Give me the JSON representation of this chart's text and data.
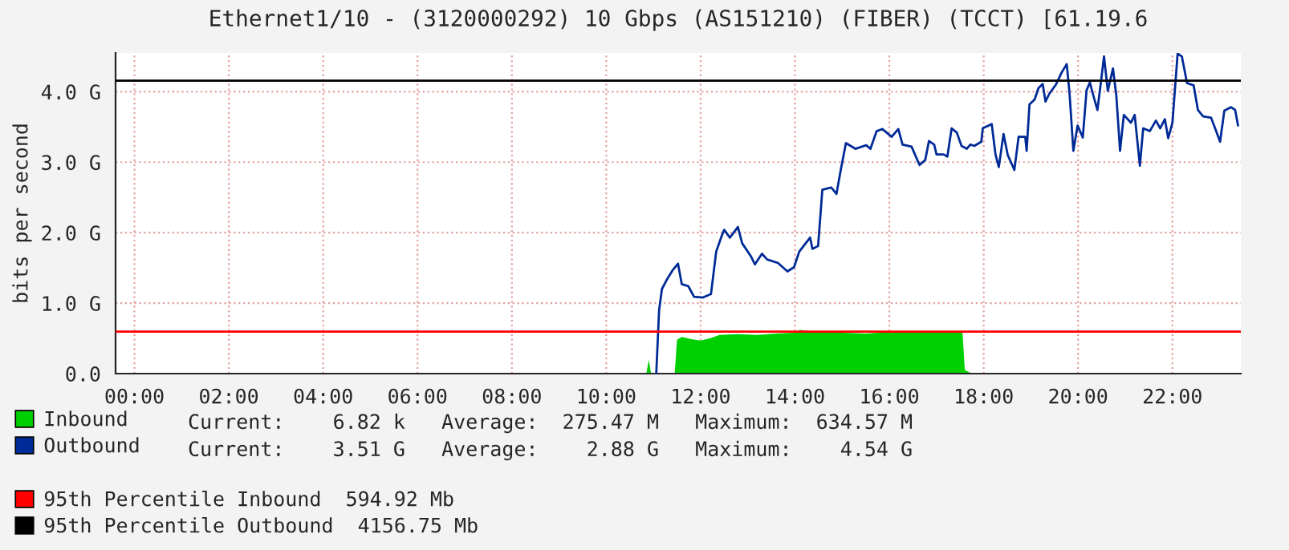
{
  "chart_data": {
    "type": "line",
    "title": "Ethernet1/10 - (3120000292) 10 Gbps (AS151210) (FIBER) (TCCT) [61.19.6",
    "ylabel": "bits per second",
    "xlim": [
      -0.4,
      23.45
    ],
    "xticks": [
      {
        "value": 0,
        "label": "00:00"
      },
      {
        "value": 2,
        "label": "02:00"
      },
      {
        "value": 4,
        "label": "04:00"
      },
      {
        "value": 6,
        "label": "06:00"
      },
      {
        "value": 8,
        "label": "08:00"
      },
      {
        "value": 10,
        "label": "10:00"
      },
      {
        "value": 12,
        "label": "12:00"
      },
      {
        "value": 14,
        "label": "14:00"
      },
      {
        "value": 16,
        "label": "16:00"
      },
      {
        "value": 18,
        "label": "18:00"
      },
      {
        "value": 20,
        "label": "20:00"
      },
      {
        "value": 22,
        "label": "22:00"
      }
    ],
    "ylim": [
      0,
      4.55
    ],
    "yticks": [
      {
        "value": 0,
        "label": "0.0"
      },
      {
        "value": 1,
        "label": "1.0 G"
      },
      {
        "value": 2,
        "label": "2.0 G"
      },
      {
        "value": 3,
        "label": "3.0 G"
      },
      {
        "value": 4,
        "label": "4.0 G"
      }
    ],
    "grid": true,
    "legend": "bottom",
    "series": [
      {
        "name": "Inbound",
        "type": "area",
        "color": "#00cf00",
        "x": [
          10.85,
          10.9,
          10.95,
          11.45,
          11.5,
          11.6,
          11.8,
          12.0,
          12.2,
          12.4,
          12.8,
          13.2,
          13.6,
          14.0,
          14.1,
          14.5,
          15.0,
          15.5,
          16.0,
          16.5,
          17.0,
          17.55,
          17.6,
          17.75
        ],
        "values": [
          0,
          0.2,
          0,
          0,
          0.48,
          0.52,
          0.49,
          0.47,
          0.5,
          0.55,
          0.56,
          0.55,
          0.57,
          0.58,
          0.62,
          0.59,
          0.58,
          0.57,
          0.59,
          0.59,
          0.58,
          0.59,
          0.05,
          0
        ]
      },
      {
        "name": "Outbound",
        "color": "#002a97",
        "x": [
          11.06,
          11.12,
          11.18,
          11.29,
          11.41,
          11.52,
          11.6,
          11.74,
          11.86,
          12.05,
          12.22,
          12.33,
          12.45,
          12.5,
          12.62,
          12.79,
          12.88,
          13.07,
          13.15,
          13.3,
          13.41,
          13.64,
          13.84,
          13.98,
          14.09,
          14.32,
          14.37,
          14.49,
          14.58,
          14.77,
          14.88,
          14.97,
          15.08,
          15.28,
          15.51,
          15.6,
          15.73,
          15.85,
          16.05,
          16.19,
          16.28,
          16.47,
          16.64,
          16.76,
          16.84,
          16.95,
          17.0,
          17.15,
          17.23,
          17.32,
          17.43,
          17.53,
          17.64,
          17.72,
          17.8,
          17.95,
          17.98,
          18.17,
          18.25,
          18.32,
          18.42,
          18.51,
          18.65,
          18.74,
          18.88,
          18.91,
          18.97,
          19.08,
          19.16,
          19.25,
          19.31,
          19.39,
          19.53,
          19.65,
          19.76,
          19.82,
          19.9,
          19.99,
          20.1,
          20.18,
          20.25,
          20.33,
          20.41,
          20.48,
          20.55,
          20.63,
          20.74,
          20.81,
          20.89,
          20.97,
          21.12,
          21.2,
          21.31,
          21.38,
          21.52,
          21.65,
          21.74,
          21.84,
          21.91,
          22.0,
          22.11,
          22.2,
          22.31,
          22.45,
          22.54,
          22.65,
          22.82,
          22.9,
          23.01,
          23.1,
          23.24,
          23.33,
          23.39
        ],
        "values": [
          0,
          0.9,
          1.2,
          1.34,
          1.47,
          1.56,
          1.27,
          1.24,
          1.09,
          1.08,
          1.13,
          1.73,
          1.96,
          2.04,
          1.93,
          2.08,
          1.85,
          1.66,
          1.55,
          1.7,
          1.62,
          1.57,
          1.45,
          1.51,
          1.73,
          1.93,
          1.77,
          1.81,
          2.61,
          2.64,
          2.55,
          2.89,
          3.27,
          3.19,
          3.24,
          3.19,
          3.44,
          3.47,
          3.36,
          3.47,
          3.25,
          3.22,
          2.96,
          3.03,
          3.3,
          3.25,
          3.11,
          3.11,
          3.08,
          3.48,
          3.42,
          3.23,
          3.19,
          3.25,
          3.23,
          3.29,
          3.48,
          3.54,
          3.11,
          2.93,
          3.4,
          3.1,
          2.89,
          3.36,
          3.36,
          3.16,
          3.82,
          3.89,
          4.05,
          4.11,
          3.86,
          3.97,
          4.1,
          4.27,
          4.39,
          3.97,
          3.16,
          3.52,
          3.35,
          4.02,
          4.13,
          3.93,
          3.74,
          4.11,
          4.5,
          4.01,
          4.33,
          3.95,
          3.16,
          3.67,
          3.56,
          3.67,
          2.95,
          3.48,
          3.44,
          3.59,
          3.48,
          3.61,
          3.34,
          3.56,
          4.54,
          4.5,
          4.12,
          4.09,
          3.74,
          3.65,
          3.63,
          3.49,
          3.29,
          3.73,
          3.78,
          3.74,
          3.52
        ]
      }
    ],
    "ref_lines": [
      {
        "axis": "y",
        "value": 0.595,
        "label": "95th Percentile Inbound  594.92 Mb",
        "color": "#ff0000"
      },
      {
        "axis": "y",
        "value": 4.157,
        "label": "95th Percentile Outbound  4156.75 Mb",
        "color": "#000000"
      }
    ],
    "annotations": [
      "Current:    6.82 k   Average:  275.47 M   Maximum:  634.57 M",
      "Current:    3.51 G   Average:    2.88 G   Maximum:    4.54 G"
    ]
  }
}
